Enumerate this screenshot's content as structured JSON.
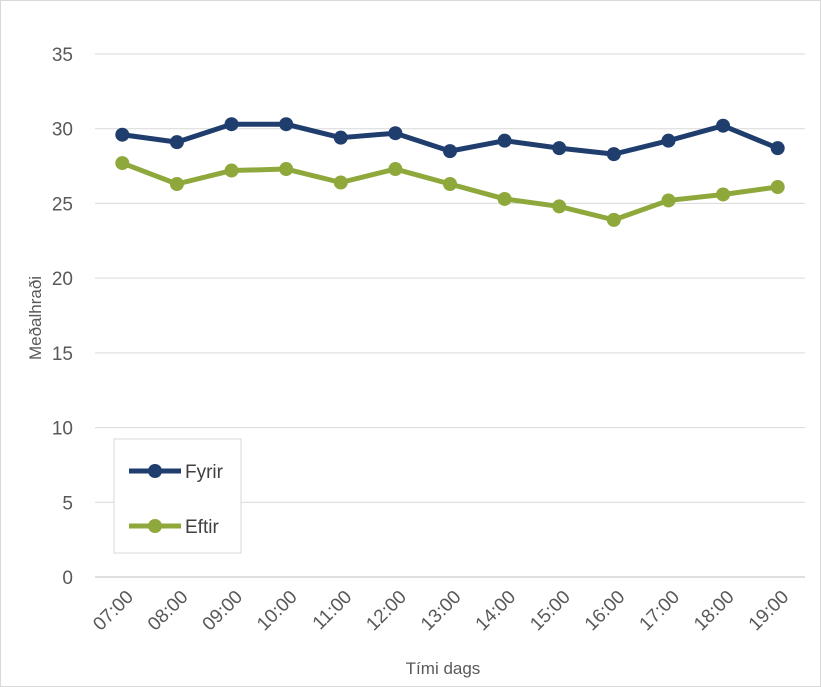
{
  "chart_data": {
    "type": "line",
    "xlabel": "Tími dags",
    "ylabel": "Meðalhraði",
    "ylim": [
      0,
      35
    ],
    "yticks": [
      0,
      5,
      10,
      15,
      20,
      25,
      30,
      35
    ],
    "grid": "horizontal",
    "legend_position": "bottom-left",
    "categories": [
      "07:00",
      "08:00",
      "09:00",
      "10:00",
      "11:00",
      "12:00",
      "13:00",
      "14:00",
      "15:00",
      "16:00",
      "17:00",
      "18:00",
      "19:00"
    ],
    "series": [
      {
        "name": "Fyrir",
        "color": "#1f3e6e",
        "values": [
          29.6,
          29.1,
          30.3,
          30.3,
          29.4,
          29.7,
          28.5,
          29.2,
          28.7,
          28.3,
          29.2,
          30.2,
          28.7
        ]
      },
      {
        "name": "Eftir",
        "color": "#8ea83c",
        "values": [
          27.7,
          26.3,
          27.2,
          27.3,
          26.4,
          27.3,
          26.3,
          25.3,
          24.8,
          23.9,
          25.2,
          25.6,
          26.1
        ]
      }
    ]
  }
}
